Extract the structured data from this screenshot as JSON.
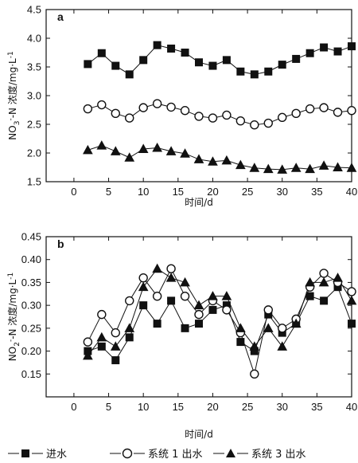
{
  "legend": [
    {
      "marker": "filled-square",
      "label": "进水"
    },
    {
      "marker": "open-circle",
      "label": "系统 1 出水"
    },
    {
      "marker": "filled-triangle",
      "label": "系统 3 出水"
    }
  ],
  "chart_data": [
    {
      "type": "line",
      "panel": "a",
      "xlabel": "时间/d",
      "ylabel": "NO3--N 浓度/mg·L-1",
      "xlim": [
        -4,
        40
      ],
      "ylim": [
        1.5,
        4.5
      ],
      "xticks": [
        "0",
        "5",
        "10",
        "15",
        "20",
        "25",
        "30",
        "35",
        "40"
      ],
      "yticks": [
        "1.5",
        "2.0",
        "2.5",
        "3.0",
        "3.5",
        "4.0",
        "4.5"
      ],
      "x": [
        2,
        4,
        6,
        8,
        10,
        12,
        14,
        16,
        18,
        20,
        22,
        24,
        26,
        28,
        30,
        32,
        34,
        36,
        38,
        40
      ],
      "series": [
        {
          "name": "进水",
          "marker": "filled-square",
          "values": [
            3.55,
            3.74,
            3.52,
            3.37,
            3.62,
            3.88,
            3.82,
            3.75,
            3.58,
            3.52,
            3.62,
            3.42,
            3.37,
            3.42,
            3.54,
            3.64,
            3.74,
            3.84,
            3.77,
            3.86
          ]
        },
        {
          "name": "系统 1 出水",
          "marker": "open-circle",
          "values": [
            2.77,
            2.84,
            2.69,
            2.61,
            2.79,
            2.86,
            2.8,
            2.74,
            2.64,
            2.61,
            2.66,
            2.56,
            2.49,
            2.52,
            2.62,
            2.69,
            2.77,
            2.79,
            2.71,
            2.74
          ]
        },
        {
          "name": "系统 3 出水",
          "marker": "filled-triangle",
          "values": [
            2.05,
            2.13,
            2.03,
            1.92,
            2.07,
            2.09,
            2.03,
            1.99,
            1.89,
            1.85,
            1.87,
            1.79,
            1.74,
            1.72,
            1.71,
            1.74,
            1.72,
            1.78,
            1.75,
            1.74
          ]
        }
      ]
    },
    {
      "type": "line",
      "panel": "b",
      "xlabel": "时间/d",
      "ylabel": "NO2--N 浓度/mg·L-1",
      "xlim": [
        -4,
        40
      ],
      "ylim": [
        0.1,
        0.45
      ],
      "xticks": [
        "0",
        "5",
        "10",
        "15",
        "20",
        "25",
        "30",
        "35",
        "40"
      ],
      "yticks": [
        "0.15",
        "0.20",
        "0.25",
        "0.30",
        "0.35",
        "0.40",
        "0.45"
      ],
      "x": [
        2,
        4,
        6,
        8,
        10,
        12,
        14,
        16,
        18,
        20,
        22,
        24,
        26,
        28,
        30,
        32,
        34,
        36,
        38,
        40
      ],
      "series": [
        {
          "name": "进水",
          "marker": "filled-square",
          "values": [
            0.2,
            0.21,
            0.18,
            0.23,
            0.3,
            0.26,
            0.31,
            0.25,
            0.26,
            0.29,
            0.3,
            0.22,
            0.2,
            0.28,
            0.24,
            0.26,
            0.32,
            0.31,
            0.34,
            0.26
          ]
        },
        {
          "name": "系统 1 出水",
          "marker": "open-circle",
          "values": [
            0.22,
            0.28,
            0.24,
            0.31,
            0.36,
            0.32,
            0.38,
            0.32,
            0.28,
            0.31,
            0.29,
            0.24,
            0.15,
            0.29,
            0.25,
            0.27,
            0.34,
            0.37,
            0.35,
            0.33
          ]
        },
        {
          "name": "系统 3 出水",
          "marker": "filled-triangle",
          "values": [
            0.19,
            0.23,
            0.21,
            0.25,
            0.34,
            0.38,
            0.36,
            0.35,
            0.3,
            0.32,
            0.32,
            0.25,
            0.21,
            0.25,
            0.21,
            0.26,
            0.35,
            0.35,
            0.36,
            0.31
          ]
        }
      ]
    }
  ]
}
